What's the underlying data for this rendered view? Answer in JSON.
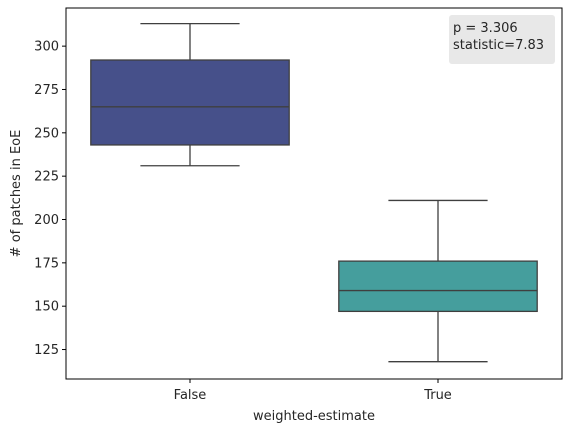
{
  "chart_data": {
    "type": "box",
    "xlabel": "weighted-estimate",
    "ylabel": "# of patches in EoE",
    "ylim": [
      108,
      322
    ],
    "yticks": [
      125,
      150,
      175,
      200,
      225,
      250,
      275,
      300
    ],
    "grid": false,
    "categories": [
      "False",
      "True"
    ],
    "boxes": [
      {
        "category": "False",
        "whisker_low": 231,
        "q1": 243,
        "median": 265,
        "q3": 292,
        "whisker_high": 313,
        "color": "#46508A"
      },
      {
        "category": "True",
        "whisker_low": 118,
        "q1": 147,
        "median": 159,
        "q3": 176,
        "whisker_high": 211,
        "color": "#459E9D"
      }
    ],
    "annotation": {
      "lines": [
        "p = 3.306",
        "statistic=7.83"
      ],
      "position": "top-right",
      "background": "#E8E8E8"
    }
  }
}
